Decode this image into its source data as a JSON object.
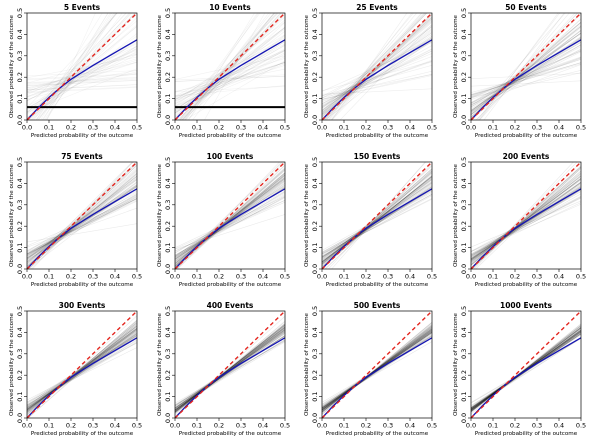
{
  "chart_data": {
    "type": "line",
    "x_label": "Predicted probability of the outcome",
    "y_label": "Observed probability of the outcome",
    "xlim": [
      0,
      0.5
    ],
    "ylim": [
      0,
      0.5
    ],
    "x_ticks": [
      0.0,
      0.1,
      0.2,
      0.3,
      0.4,
      0.5
    ],
    "y_ticks": [
      0.0,
      0.1,
      0.2,
      0.3,
      0.4,
      0.5
    ],
    "grid": false,
    "colors": {
      "reference": "#e3261f",
      "mean_curve": "#1414b4",
      "simulations": "#000000"
    },
    "reference_line": {
      "x": [
        0.0,
        0.5
      ],
      "y": [
        0.0,
        0.5
      ]
    },
    "mean_curve": {
      "x": [
        0.0,
        0.05,
        0.1,
        0.15,
        0.2,
        0.3,
        0.4,
        0.5
      ],
      "y": [
        0.0,
        0.055,
        0.105,
        0.15,
        0.19,
        0.255,
        0.315,
        0.375
      ]
    },
    "panels": [
      {
        "title": "5 Events",
        "spread": 1.0,
        "flat_line_y": 0.06
      },
      {
        "title": "10 Events",
        "spread": 0.85,
        "flat_line_y": 0.06
      },
      {
        "title": "25 Events",
        "spread": 0.6
      },
      {
        "title": "50 Events",
        "spread": 0.45
      },
      {
        "title": "75 Events",
        "spread": 0.36
      },
      {
        "title": "100 Events",
        "spread": 0.3
      },
      {
        "title": "150 Events",
        "spread": 0.25
      },
      {
        "title": "200 Events",
        "spread": 0.21
      },
      {
        "title": "300 Events",
        "spread": 0.17
      },
      {
        "title": "400 Events",
        "spread": 0.14
      },
      {
        "title": "500 Events",
        "spread": 0.12
      },
      {
        "title": "1000 Events",
        "spread": 0.09
      }
    ]
  }
}
